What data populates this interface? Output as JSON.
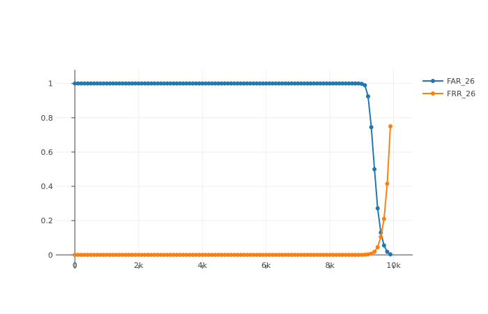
{
  "chart_data": {
    "type": "line",
    "title": "",
    "xlabel": "",
    "ylabel": "",
    "xlim": [
      -600,
      10600
    ],
    "ylim": [
      -0.06,
      1.08
    ],
    "x_ticks": [
      0,
      2000,
      4000,
      6000,
      8000,
      10000
    ],
    "x_tick_labels": [
      "0",
      "2k",
      "4k",
      "6k",
      "8k",
      "10k"
    ],
    "y_ticks": [
      0,
      0.2,
      0.4,
      0.6,
      0.8,
      1
    ],
    "y_tick_labels": [
      "0",
      "0.2",
      "0.4",
      "0.6",
      "0.8",
      "1"
    ],
    "grid": true,
    "legend_position": "top-right",
    "series": [
      {
        "name": "FAR_26",
        "color": "#1f77b4",
        "x": [
          0,
          100,
          200,
          300,
          400,
          500,
          600,
          700,
          800,
          900,
          1000,
          1100,
          1200,
          1300,
          1400,
          1500,
          1600,
          1700,
          1800,
          1900,
          2000,
          2100,
          2200,
          2300,
          2400,
          2500,
          2600,
          2700,
          2800,
          2900,
          3000,
          3100,
          3200,
          3300,
          3400,
          3500,
          3600,
          3700,
          3800,
          3900,
          4000,
          4100,
          4200,
          4300,
          4400,
          4500,
          4600,
          4700,
          4800,
          4900,
          5000,
          5100,
          5200,
          5300,
          5400,
          5500,
          5600,
          5700,
          5800,
          5900,
          6000,
          6100,
          6200,
          6300,
          6400,
          6500,
          6600,
          6700,
          6800,
          6900,
          7000,
          7100,
          7200,
          7300,
          7400,
          7500,
          7600,
          7700,
          7800,
          7900,
          8000,
          8100,
          8200,
          8300,
          8400,
          8500,
          8600,
          8700,
          8800,
          8900,
          9000,
          9100,
          9200,
          9300,
          9400,
          9500,
          9600,
          9700,
          9800,
          9900
        ],
        "y": [
          1,
          1,
          1,
          1,
          1,
          1,
          1,
          1,
          1,
          1,
          1,
          1,
          1,
          1,
          1,
          1,
          1,
          1,
          1,
          1,
          1,
          1,
          1,
          1,
          1,
          1,
          1,
          1,
          1,
          1,
          1,
          1,
          1,
          1,
          1,
          1,
          1,
          1,
          1,
          1,
          1,
          1,
          1,
          1,
          1,
          1,
          1,
          1,
          1,
          1,
          1,
          1,
          1,
          1,
          1,
          1,
          1,
          1,
          1,
          1,
          1,
          1,
          1,
          1,
          1,
          1,
          1,
          1,
          1,
          1,
          1,
          1,
          1,
          1,
          1,
          1,
          1,
          1,
          1,
          1,
          1,
          1,
          1,
          1,
          1,
          1,
          1,
          1,
          1,
          1,
          0.998,
          0.99,
          0.925,
          0.745,
          0.5,
          0.272,
          0.13,
          0.055,
          0.018,
          0.003
        ]
      },
      {
        "name": "FRR_26",
        "color": "#ff7f0e",
        "x": [
          0,
          100,
          200,
          300,
          400,
          500,
          600,
          700,
          800,
          900,
          1000,
          1100,
          1200,
          1300,
          1400,
          1500,
          1600,
          1700,
          1800,
          1900,
          2000,
          2100,
          2200,
          2300,
          2400,
          2500,
          2600,
          2700,
          2800,
          2900,
          3000,
          3100,
          3200,
          3300,
          3400,
          3500,
          3600,
          3700,
          3800,
          3900,
          4000,
          4100,
          4200,
          4300,
          4400,
          4500,
          4600,
          4700,
          4800,
          4900,
          5000,
          5100,
          5200,
          5300,
          5400,
          5500,
          5600,
          5700,
          5800,
          5900,
          6000,
          6100,
          6200,
          6300,
          6400,
          6500,
          6600,
          6700,
          6800,
          6900,
          7000,
          7100,
          7200,
          7300,
          7400,
          7500,
          7600,
          7700,
          7800,
          7900,
          8000,
          8100,
          8200,
          8300,
          8400,
          8500,
          8600,
          8700,
          8800,
          8900,
          9000,
          9100,
          9200,
          9300,
          9400,
          9500,
          9600,
          9700,
          9800,
          9900
        ],
        "y": [
          0,
          0,
          0,
          0,
          0,
          0,
          0,
          0,
          0,
          0,
          0,
          0,
          0,
          0,
          0,
          0,
          0,
          0,
          0,
          0,
          0,
          0,
          0,
          0,
          0,
          0,
          0,
          0,
          0,
          0,
          0,
          0,
          0,
          0,
          0,
          0,
          0,
          0,
          0,
          0,
          0,
          0,
          0,
          0,
          0,
          0,
          0,
          0,
          0,
          0,
          0,
          0,
          0,
          0,
          0,
          0,
          0,
          0,
          0,
          0,
          0,
          0,
          0,
          0,
          0,
          0,
          0,
          0,
          0,
          0,
          0,
          0,
          0,
          0,
          0,
          0,
          0,
          0,
          0,
          0,
          0,
          0,
          0,
          0,
          0,
          0,
          0,
          0,
          0,
          0,
          0,
          0.001,
          0.003,
          0.007,
          0.018,
          0.045,
          0.105,
          0.21,
          0.415,
          0.75
        ]
      }
    ]
  }
}
